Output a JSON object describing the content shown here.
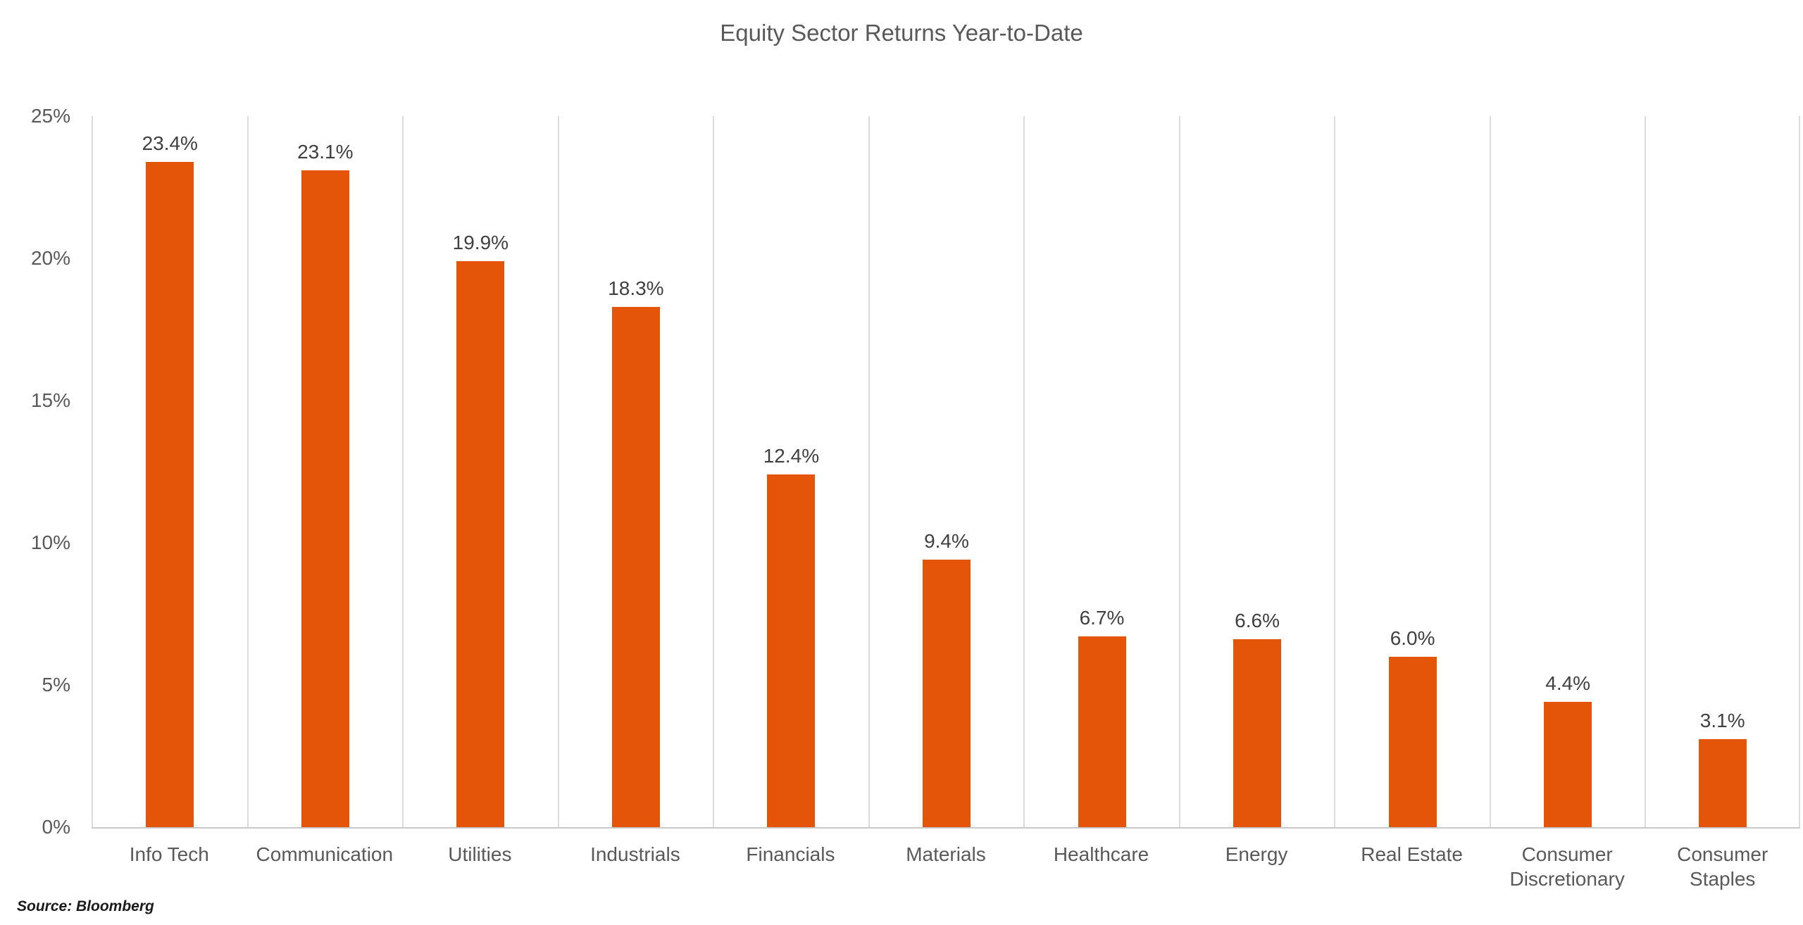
{
  "chart_data": {
    "type": "bar",
    "title": "Equity Sector Returns Year-to-Date",
    "categories": [
      "Info Tech",
      "Communication",
      "Utilities",
      "Industrials",
      "Financials",
      "Materials",
      "Healthcare",
      "Energy",
      "Real Estate",
      "Consumer Discretionary",
      "Consumer Staples"
    ],
    "values": [
      23.4,
      23.1,
      19.9,
      18.3,
      12.4,
      9.4,
      6.7,
      6.6,
      6.0,
      4.4,
      3.1
    ],
    "data_labels": [
      "23.4%",
      "23.1%",
      "19.9%",
      "18.3%",
      "12.4%",
      "9.4%",
      "6.7%",
      "6.6%",
      "6.0%",
      "4.4%",
      "3.1%"
    ],
    "xlabel": "",
    "ylabel": "",
    "ylim": [
      0,
      25
    ],
    "yticks": [
      {
        "value": 25,
        "label": "25%"
      },
      {
        "value": 20,
        "label": "20%"
      },
      {
        "value": 15,
        "label": "15%"
      },
      {
        "value": 10,
        "label": "10%"
      },
      {
        "value": 5,
        "label": "5%"
      },
      {
        "value": 0,
        "label": "0%"
      }
    ],
    "grid": "vertical-category-boundaries-only",
    "legend": "none",
    "bar_color": "#E4550A",
    "source": "Source: Bloomberg"
  },
  "colors": {
    "background": "#FFFFFF",
    "bar": "#E4550A",
    "title_text": "#595959",
    "axis_text": "#595959",
    "data_label_text": "#404040",
    "gridline": "#DCDCDC",
    "axis_line": "#C9C9C9",
    "source_text": "#1A1A1A"
  }
}
